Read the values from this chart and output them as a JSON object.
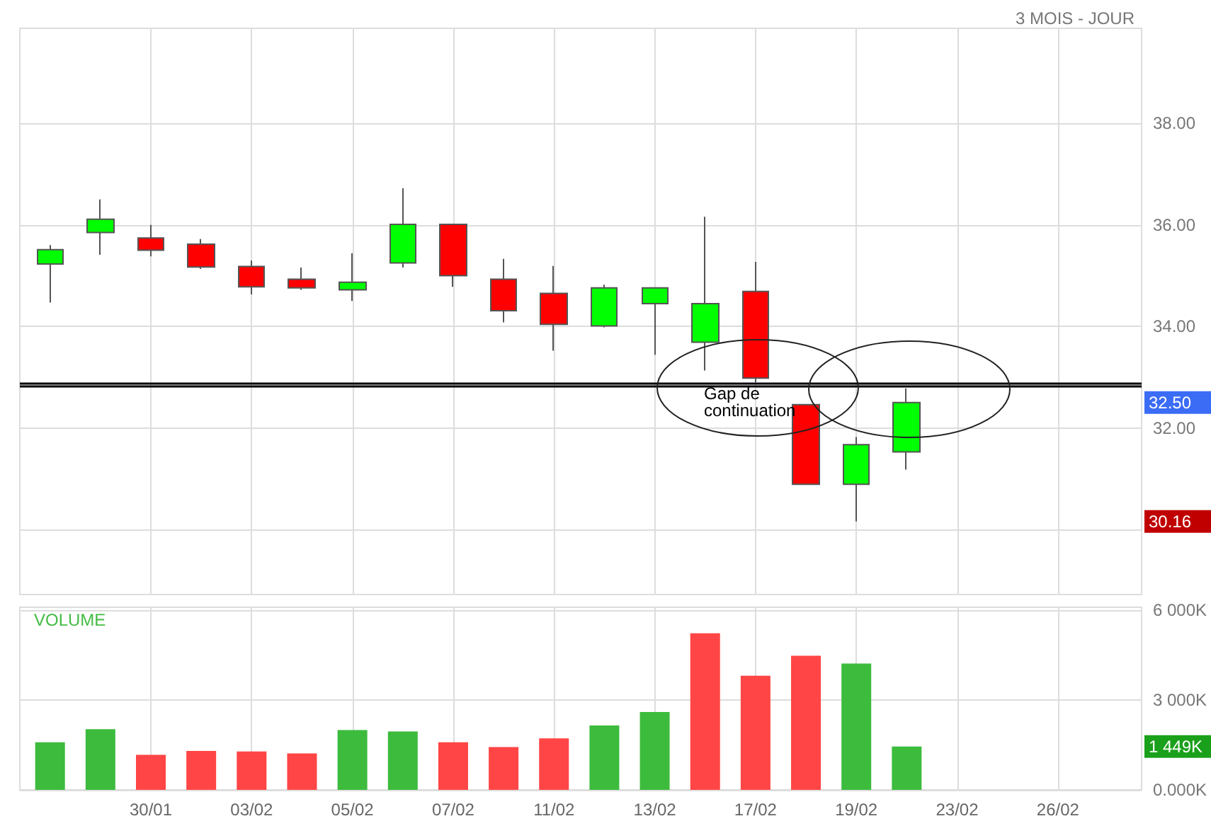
{
  "chart_data": [
    {
      "type": "candlestick",
      "subtitle": "3 MOIS - JOUR",
      "categories": [
        null,
        null,
        null,
        null,
        null,
        null,
        null,
        null,
        null,
        null,
        null,
        null,
        null,
        null,
        null,
        null,
        null,
        null,
        null,
        null,
        null,
        null
      ],
      "ohlc": [
        [
          35.23,
          35.6,
          34.47,
          35.51
        ],
        [
          35.85,
          36.5,
          35.41,
          36.11
        ],
        [
          35.74,
          36.0,
          35.38,
          35.5
        ],
        [
          35.62,
          35.72,
          35.13,
          35.17
        ],
        [
          35.18,
          35.3,
          34.63,
          34.78
        ],
        [
          34.93,
          35.16,
          34.72,
          34.76
        ],
        [
          34.72,
          35.44,
          34.5,
          34.87
        ],
        [
          35.25,
          36.72,
          35.16,
          36.01
        ],
        [
          36.01,
          36.01,
          34.78,
          35.0
        ],
        [
          34.93,
          35.33,
          34.08,
          34.31
        ],
        [
          34.65,
          35.19,
          33.52,
          34.04
        ],
        [
          34.01,
          34.82,
          33.98,
          34.76
        ],
        [
          34.45,
          34.76,
          33.44,
          34.76
        ],
        [
          33.69,
          36.16,
          33.13,
          34.45
        ],
        [
          34.69,
          35.27,
          32.9,
          32.98
        ],
        [
          32.46,
          32.46,
          30.89,
          30.89
        ],
        [
          30.89,
          31.82,
          30.16,
          31.67
        ],
        [
          31.53,
          32.78,
          31.18,
          32.5
        ],
        null,
        null,
        null,
        null
      ],
      "colors": [
        "#00ff00",
        "#00ff00",
        "#ff0000",
        "#ff0000",
        "#ff0000",
        "#ff0000",
        "#00ff00",
        "#00ff00",
        "#ff0000",
        "#ff0000",
        "#ff0000",
        "#00ff00",
        "#00ff00",
        "#00ff00",
        "#ff0000",
        "#ff0000",
        "#00ff00",
        "#00ff00",
        null,
        null,
        null,
        null
      ],
      "ylim": [
        28.72,
        39.87
      ],
      "yticks": [
        {
          "value": 30,
          "label": null
        },
        {
          "value": 32,
          "label": "32.00"
        },
        {
          "value": 34,
          "label": "34.00"
        },
        {
          "value": 36,
          "label": "36.00"
        },
        {
          "value": 38,
          "label": "38.00"
        }
      ],
      "ref_lines": [
        {
          "axis": "y",
          "value": 32.87,
          "color": "#000000"
        },
        {
          "axis": "y",
          "value": 32.82,
          "color": "#000000"
        }
      ],
      "annotations": [
        "Gap de continuation",
        "32.50",
        "30.16"
      ],
      "grid": true,
      "tick_labels": "y"
    },
    {
      "type": "bar",
      "title": "VOLUME",
      "categories": [
        null,
        null,
        "30/01",
        null,
        "03/02",
        null,
        "05/02",
        null,
        "07/02",
        null,
        "11/02",
        null,
        "13/02",
        null,
        "17/02",
        null,
        "19/02",
        null,
        "23/02",
        null,
        "26/02",
        null
      ],
      "values": [
        1590,
        2030,
        1170,
        1300,
        1280,
        1220,
        2000,
        1950,
        1590,
        1430,
        1720,
        2150,
        2600,
        5230,
        3810,
        4480,
        4220,
        1449,
        null,
        null,
        null,
        null
      ],
      "colors": [
        "#3dbb3d",
        "#3dbb3d",
        "#ff4545",
        "#ff4545",
        "#ff4545",
        "#ff4545",
        "#3dbb3d",
        "#3dbb3d",
        "#ff4545",
        "#ff4545",
        "#ff4545",
        "#3dbb3d",
        "#3dbb3d",
        "#ff4545",
        "#ff4545",
        "#ff4545",
        "#3dbb3d",
        "#3dbb3d",
        null,
        null,
        null,
        null
      ],
      "ylim": [
        0,
        6100
      ],
      "yticks": [
        {
          "value": 0,
          "label": "0.000K"
        },
        {
          "value": 3000,
          "label": "3 000K"
        },
        {
          "value": 6000,
          "label": "6 000K"
        }
      ],
      "annotations": [
        "1 449K"
      ],
      "grid": true
    }
  ]
}
